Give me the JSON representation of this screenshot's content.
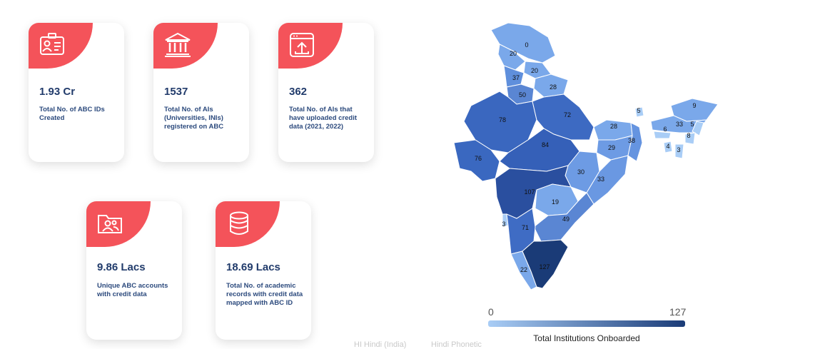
{
  "cards": [
    {
      "value": "1.93 Cr",
      "desc": "Total No. of ABC IDs Created",
      "icon": "id-card-icon"
    },
    {
      "value": "1537",
      "desc": "Total No. of AIs (Universities, INIs) registered on ABC",
      "icon": "university-building-icon"
    },
    {
      "value": "362",
      "desc": "Total No. of AIs that have uploaded credit data (2021, 2022)",
      "icon": "upload-window-icon"
    },
    {
      "value": "9.86 Lacs",
      "desc": "Unique ABC accounts with credit data",
      "icon": "users-folder-icon"
    },
    {
      "value": "18.69 Lacs",
      "desc": "Total No. of academic records with credit data mapped with ABC ID",
      "icon": "database-icon"
    }
  ],
  "map": {
    "legend_min": "0",
    "legend_max": "127",
    "legend_title": "Total Institutions Onboarded",
    "color_low": "#a9cdf6",
    "color_high": "#1a3b77",
    "state_values": {
      "jammu_kashmir": "0",
      "himachal": "20",
      "uttarakhand": "20",
      "punjab": "37",
      "haryana": "50",
      "uttar_pradesh": "72",
      "rajasthan": "78",
      "gujarat": "76",
      "madhya_pradesh": "84",
      "bihar": "28",
      "west_bengal": "38",
      "jharkhand": "29",
      "chhattisgarh": "30",
      "odisha": "33",
      "maharashtra": "107",
      "telangana": "19",
      "andhra_pradesh": "49",
      "karnataka": "71",
      "goa": "3",
      "kerala": "22",
      "tamil_nadu": "127",
      "sikkim": "5",
      "arunachal": "9",
      "assam": "33",
      "meghalaya": "6",
      "nagaland": "5",
      "manipur": "8",
      "tripura": "4",
      "mizoram": "3",
      "uttarakhand_upper": "28"
    }
  },
  "language_bar": {
    "hindi_label": "HI Hindi (India)",
    "phonetic_label": "Hindi Phonetic"
  }
}
